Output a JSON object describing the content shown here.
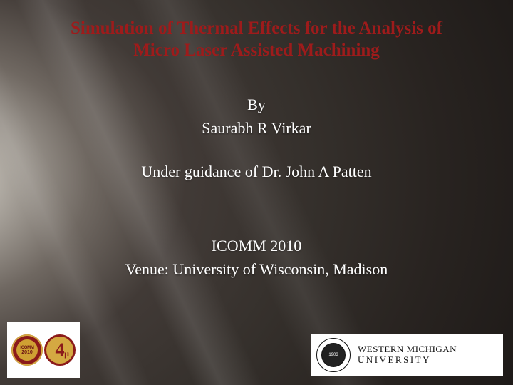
{
  "title": {
    "line1": "Simulation of Thermal Effects for the Analysis of",
    "line2": "Micro Laser Assisted Machining",
    "color": "#9e1b1b",
    "fontsize": 25
  },
  "body": {
    "by_label": "By",
    "author": "Saurabh R Virkar",
    "advisor_line": "Under guidance of Dr. John A Patten",
    "conference": "ICOMM 2010",
    "venue": "Venue: University of Wisconsin, Madison",
    "color": "#ffffff",
    "fontsize": 22
  },
  "logos": {
    "left": {
      "badge_text": "ICOMM",
      "badge_year": "2010",
      "mu_digit": "4",
      "mu_symbol": "µ"
    },
    "right": {
      "seal_year": "1903",
      "line1": "WESTERN MICHIGAN",
      "line2": "UNIVERSITY"
    }
  },
  "styling": {
    "background_dark": "#2a2522",
    "light_ray_origin": "top-left",
    "slide_width": 720,
    "slide_height": 540,
    "font_family": "Georgia serif"
  }
}
